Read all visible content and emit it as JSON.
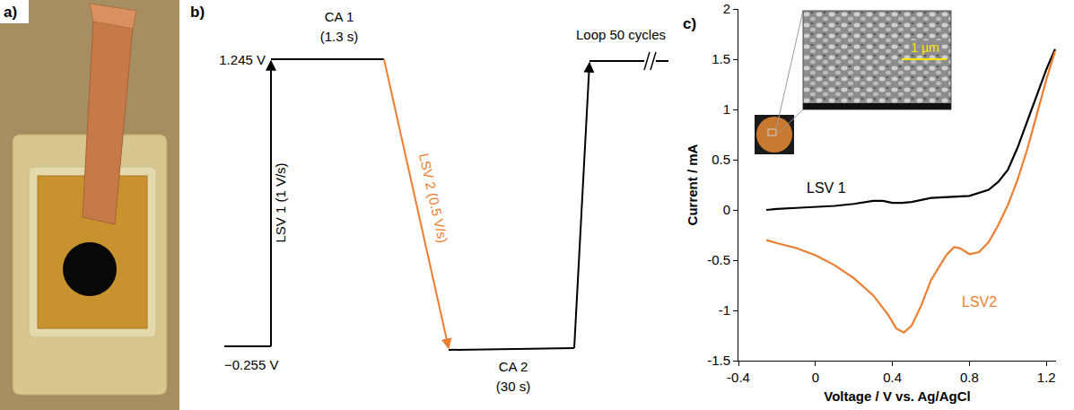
{
  "photo": {
    "panel_label": "a)"
  },
  "diagram": {
    "panel_label": "b)",
    "high_voltage": "1.245 V",
    "low_voltage": "−0.255 V",
    "step1": "CA 1",
    "step1_time": "(1.3 s)",
    "sweep1": "LSV 1 (1 V/s)",
    "sweep2": "LSV 2 (0.5 V/s)",
    "step2": "CA 2",
    "step2_time": "(30 s)",
    "loop": "Loop 50 cycles"
  },
  "chart_data": {
    "type": "line",
    "panel_label": "c)",
    "x_label": "Voltage / V vs. Ag/AgCl",
    "y_label": "Current / mA",
    "xlim": [
      -0.4,
      1.25
    ],
    "xticks": [
      -0.4,
      0,
      0.4,
      0.8,
      1.2
    ],
    "ylim": [
      -1.5,
      2
    ],
    "yticks": [
      -1.5,
      -1,
      -0.5,
      0,
      0.5,
      1,
      1.5,
      2
    ],
    "grid": false,
    "inset_scale_bar": "1 µm",
    "series": [
      {
        "name": "LSV 1",
        "color": "#000000",
        "x": [
          -0.255,
          -0.2,
          -0.1,
          0,
          0.1,
          0.2,
          0.3,
          0.35,
          0.4,
          0.45,
          0.5,
          0.6,
          0.7,
          0.8,
          0.9,
          0.95,
          1.0,
          1.05,
          1.1,
          1.15,
          1.2,
          1.245
        ],
        "values": [
          0.0,
          0.01,
          0.02,
          0.03,
          0.04,
          0.06,
          0.09,
          0.09,
          0.07,
          0.07,
          0.08,
          0.12,
          0.13,
          0.14,
          0.2,
          0.28,
          0.4,
          0.62,
          0.88,
          1.15,
          1.4,
          1.6
        ]
      },
      {
        "name": "LSV2",
        "color": "#ED7D31",
        "x": [
          1.245,
          1.2,
          1.15,
          1.1,
          1.05,
          1.0,
          0.95,
          0.9,
          0.85,
          0.8,
          0.75,
          0.72,
          0.68,
          0.6,
          0.55,
          0.5,
          0.46,
          0.42,
          0.38,
          0.3,
          0.2,
          0.1,
          0,
          -0.1,
          -0.2,
          -0.255
        ],
        "values": [
          1.58,
          1.3,
          0.95,
          0.6,
          0.3,
          0.05,
          -0.15,
          -0.32,
          -0.42,
          -0.44,
          -0.38,
          -0.37,
          -0.45,
          -0.7,
          -0.95,
          -1.15,
          -1.22,
          -1.18,
          -1.05,
          -0.85,
          -0.68,
          -0.55,
          -0.45,
          -0.38,
          -0.33,
          -0.3
        ]
      }
    ]
  }
}
